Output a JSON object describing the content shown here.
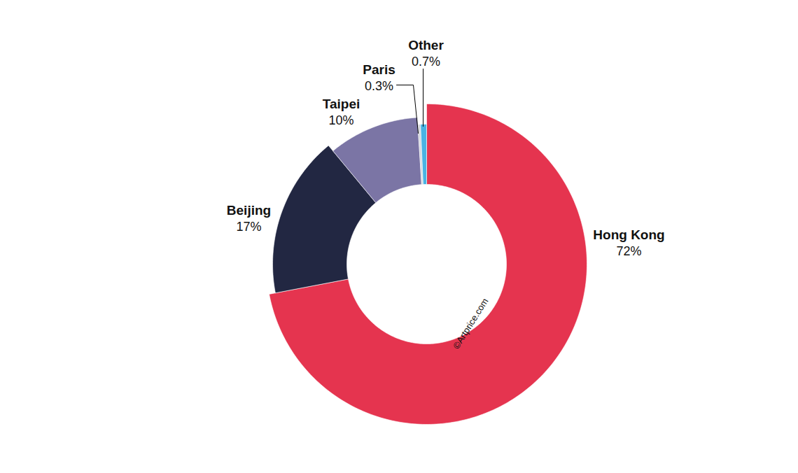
{
  "chart_data": {
    "type": "donut",
    "categories": [
      "Hong Kong",
      "Beijing",
      "Taipei",
      "Paris",
      "Other"
    ],
    "values": [
      72,
      17,
      10,
      0.3,
      0.7
    ],
    "value_labels": [
      "72%",
      "17%",
      "10%",
      "0.3%",
      "0.7%"
    ],
    "colors": [
      "#e5344f",
      "#222742",
      "#7b75a5",
      "#d5d8de",
      "#4ab3e3"
    ],
    "data_labels": true,
    "source": "©Artprice.com"
  }
}
